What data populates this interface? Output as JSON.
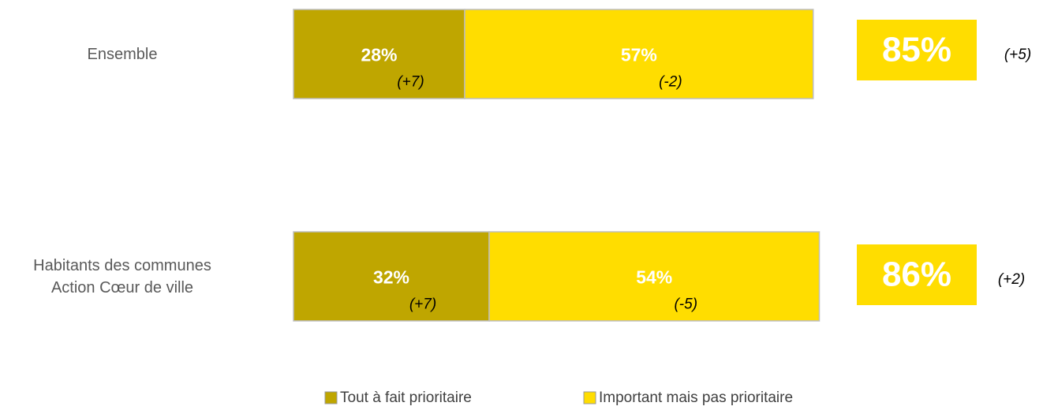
{
  "chart_data": {
    "type": "stacked-bar-horizontal",
    "categories": [
      "Ensemble",
      "Habitants des communes\nAction Cœur de ville"
    ],
    "series": [
      {
        "name": "Tout à fait prioritaire",
        "color": "#bfa600",
        "values": [
          28,
          32
        ],
        "value_labels": [
          "28%",
          "32%"
        ],
        "changes": [
          "(+7)",
          "(+7)"
        ]
      },
      {
        "name": "Important mais pas prioritaire",
        "color": "#ffdd00",
        "values": [
          57,
          54
        ],
        "value_labels": [
          "57%",
          "54%"
        ],
        "changes": [
          "(-2)",
          "(-5)"
        ]
      }
    ],
    "totals": {
      "color": "#ffdd00",
      "values": [
        85,
        86
      ],
      "value_labels": [
        "85%",
        "86%"
      ],
      "changes": [
        "(+5)",
        "(+2)"
      ]
    }
  }
}
